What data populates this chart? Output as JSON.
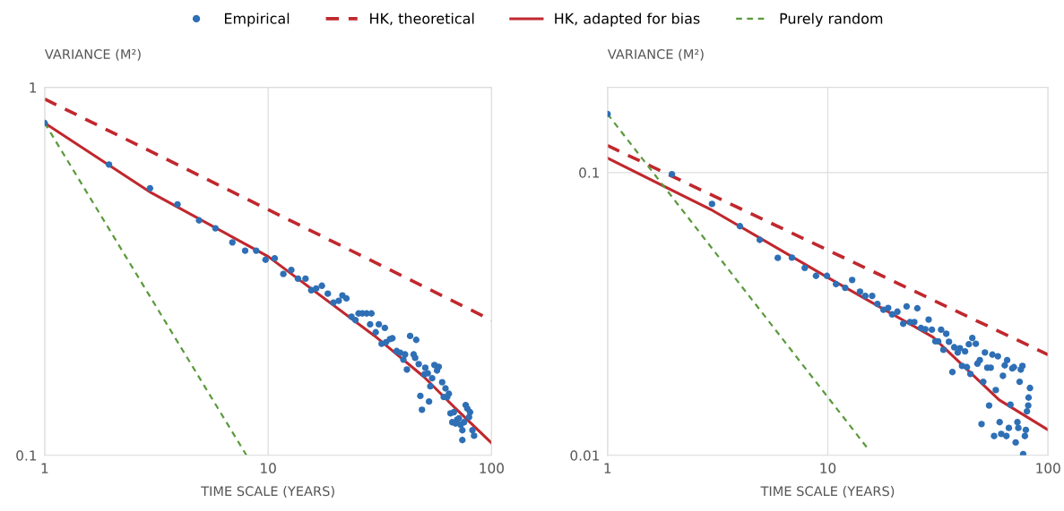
{
  "chart_data": [
    {
      "type": "line",
      "xlabel": "TIME SCALE (YEARS)",
      "ylabel": "VARIANCE (M²)",
      "log": "xy",
      "xlim": [
        1,
        100
      ],
      "ylim": [
        0.1,
        1
      ],
      "xticks": [
        1,
        10,
        100
      ],
      "yticks": [
        0.1,
        1
      ],
      "grid": true,
      "legend": "top",
      "series": [
        {
          "name": "Empirical",
          "type": "scatter",
          "marker": "circle",
          "color": "#2e6fb5",
          "x": [
            1,
            1.94,
            2.96,
            3.93,
            4.91,
            5.81,
            6.92,
            7.89,
            8.84,
            9.74,
            10.7,
            11.7,
            12.7,
            13.6,
            14.7,
            15.6,
            16.4,
            17.4,
            18.5,
            19.6,
            20.7,
            21.5,
            22.4,
            23.6,
            24.6,
            25.4,
            26.4,
            27.6,
            29.0,
            28.6,
            30.3,
            31.3,
            33.3,
            32.2,
            33.7,
            35.1,
            36.0,
            37.6,
            39.0,
            40.3,
            41.0,
            41.8,
            43.2,
            46.0,
            44.8,
            45.5,
            47.2,
            48.0,
            48.8,
            50.0,
            50.5,
            51.8,
            52.5,
            53.2,
            54.2,
            55.5,
            57.0,
            58.0,
            60.1,
            61.1,
            62.2,
            63.3,
            64.4,
            65.5,
            66.7,
            67.8,
            69.0,
            70.2,
            71.4,
            72.7,
            74.0,
            74.0,
            75.3,
            76.6,
            77.9,
            79.3,
            80.1,
            82.1,
            83.5
          ],
          "values": [
            0.8,
            0.617,
            0.532,
            0.481,
            0.435,
            0.414,
            0.379,
            0.36,
            0.36,
            0.34,
            0.343,
            0.311,
            0.319,
            0.302,
            0.302,
            0.281,
            0.284,
            0.289,
            0.275,
            0.26,
            0.263,
            0.272,
            0.267,
            0.238,
            0.233,
            0.243,
            0.243,
            0.243,
            0.243,
            0.227,
            0.216,
            0.227,
            0.222,
            0.201,
            0.203,
            0.207,
            0.208,
            0.192,
            0.19,
            0.182,
            0.188,
            0.171,
            0.211,
            0.206,
            0.188,
            0.184,
            0.177,
            0.145,
            0.133,
            0.166,
            0.173,
            0.167,
            0.14,
            0.154,
            0.162,
            0.176,
            0.17,
            0.174,
            0.158,
            0.144,
            0.152,
            0.144,
            0.147,
            0.13,
            0.123,
            0.131,
            0.122,
            0.125,
            0.126,
            0.121,
            0.117,
            0.11,
            0.123,
            0.137,
            0.134,
            0.127,
            0.131,
            0.117,
            0.113
          ]
        },
        {
          "name": "HK, theoretical",
          "line_style": "dashed",
          "color": "#c0282e",
          "x": [
            1,
            100
          ],
          "values": [
            0.93,
            0.233
          ]
        },
        {
          "name": "HK, adapted for bias",
          "line_style": "solid",
          "color": "#c0282e",
          "x": [
            1,
            3,
            10,
            30,
            50,
            70,
            100
          ],
          "values": [
            0.8,
            0.517,
            0.347,
            0.211,
            0.163,
            0.133,
            0.108
          ]
        },
        {
          "name": "Purely random",
          "line_style": "dotted",
          "color": "#5a9a3c",
          "x": [
            1,
            8
          ],
          "values": [
            0.8,
            0.1
          ]
        }
      ]
    },
    {
      "type": "line",
      "xlabel": "TIME SCALE (YEARS)",
      "ylabel": "VARIANCE (M²)",
      "log": "xy",
      "xlim": [
        1,
        100
      ],
      "ylim": [
        0.01,
        0.2
      ],
      "xticks": [
        1,
        10,
        100
      ],
      "yticks": [
        0.01,
        0.1
      ],
      "grid": true,
      "legend": "top",
      "series": [
        {
          "name": "Empirical",
          "type": "scatter",
          "marker": "circle",
          "color": "#2e6fb5",
          "x": [
            1,
            1.96,
            2.98,
            3.99,
            4.91,
            5.93,
            6.87,
            7.86,
            8.84,
            9.91,
            10.9,
            12.0,
            12.9,
            14.0,
            14.8,
            15.9,
            16.8,
            17.9,
            18.8,
            19.6,
            20.7,
            22.0,
            22.8,
            23.6,
            24.7,
            25.5,
            26.5,
            27.7,
            28.7,
            29.7,
            30.8,
            31.7,
            32.7,
            33.5,
            34.5,
            35.5,
            36.8,
            37.5,
            38.9,
            39.8,
            40.7,
            42.0,
            42.8,
            43.7,
            44.4,
            45.3,
            47.0,
            47.8,
            49.0,
            49.9,
            50.8,
            51.7,
            53.0,
            54.0,
            54.9,
            55.9,
            56.9,
            57.9,
            59.2,
            60.3,
            61.3,
            62.4,
            63.6,
            64.7,
            65.2,
            66.4,
            67.5,
            68.8,
            70.0,
            71.3,
            72.6,
            73.3,
            74.3,
            75.2,
            76.5,
            77.1,
            78.5,
            79.3,
            80.2,
            81.3,
            81.6,
            82.8
          ],
          "values": [
            0.161,
            0.0986,
            0.0774,
            0.0646,
            0.0578,
            0.0499,
            0.05,
            0.046,
            0.0431,
            0.0431,
            0.0403,
            0.0391,
            0.0417,
            0.0379,
            0.0366,
            0.0366,
            0.0343,
            0.0327,
            0.0332,
            0.0315,
            0.0322,
            0.0292,
            0.0336,
            0.0296,
            0.0296,
            0.0331,
            0.0282,
            0.0279,
            0.0302,
            0.0278,
            0.0253,
            0.0253,
            0.0278,
            0.0236,
            0.0269,
            0.0252,
            0.0197,
            0.0241,
            0.0231,
            0.0239,
            0.0207,
            0.0233,
            0.0205,
            0.0247,
            0.0194,
            0.026,
            0.0248,
            0.0211,
            0.0217,
            0.0129,
            0.0182,
            0.0231,
            0.0204,
            0.015,
            0.0204,
            0.0227,
            0.0117,
            0.017,
            0.0224,
            0.0131,
            0.0119,
            0.0191,
            0.0208,
            0.0117,
            0.0217,
            0.0125,
            0.0151,
            0.0203,
            0.0205,
            0.0111,
            0.0131,
            0.0125,
            0.0182,
            0.0201,
            0.0207,
            0.0101,
            0.0117,
            0.0123,
            0.0143,
            0.015,
            0.016,
            0.0173
          ]
        },
        {
          "name": "HK, theoretical",
          "line_style": "dashed",
          "color": "#c0282e",
          "x": [
            1,
            100
          ],
          "values": [
            0.1245,
            0.0227
          ]
        },
        {
          "name": "HK, adapted for bias",
          "line_style": "solid",
          "color": "#c0282e",
          "x": [
            1,
            3,
            10,
            30,
            60,
            100
          ],
          "values": [
            0.1125,
            0.0734,
            0.0425,
            0.0262,
            0.0157,
            0.0123
          ]
        },
        {
          "name": "Purely random",
          "line_style": "dotted",
          "color": "#5a9a3c",
          "x": [
            1,
            15
          ],
          "values": [
            0.161,
            0.0107
          ]
        }
      ]
    }
  ]
}
